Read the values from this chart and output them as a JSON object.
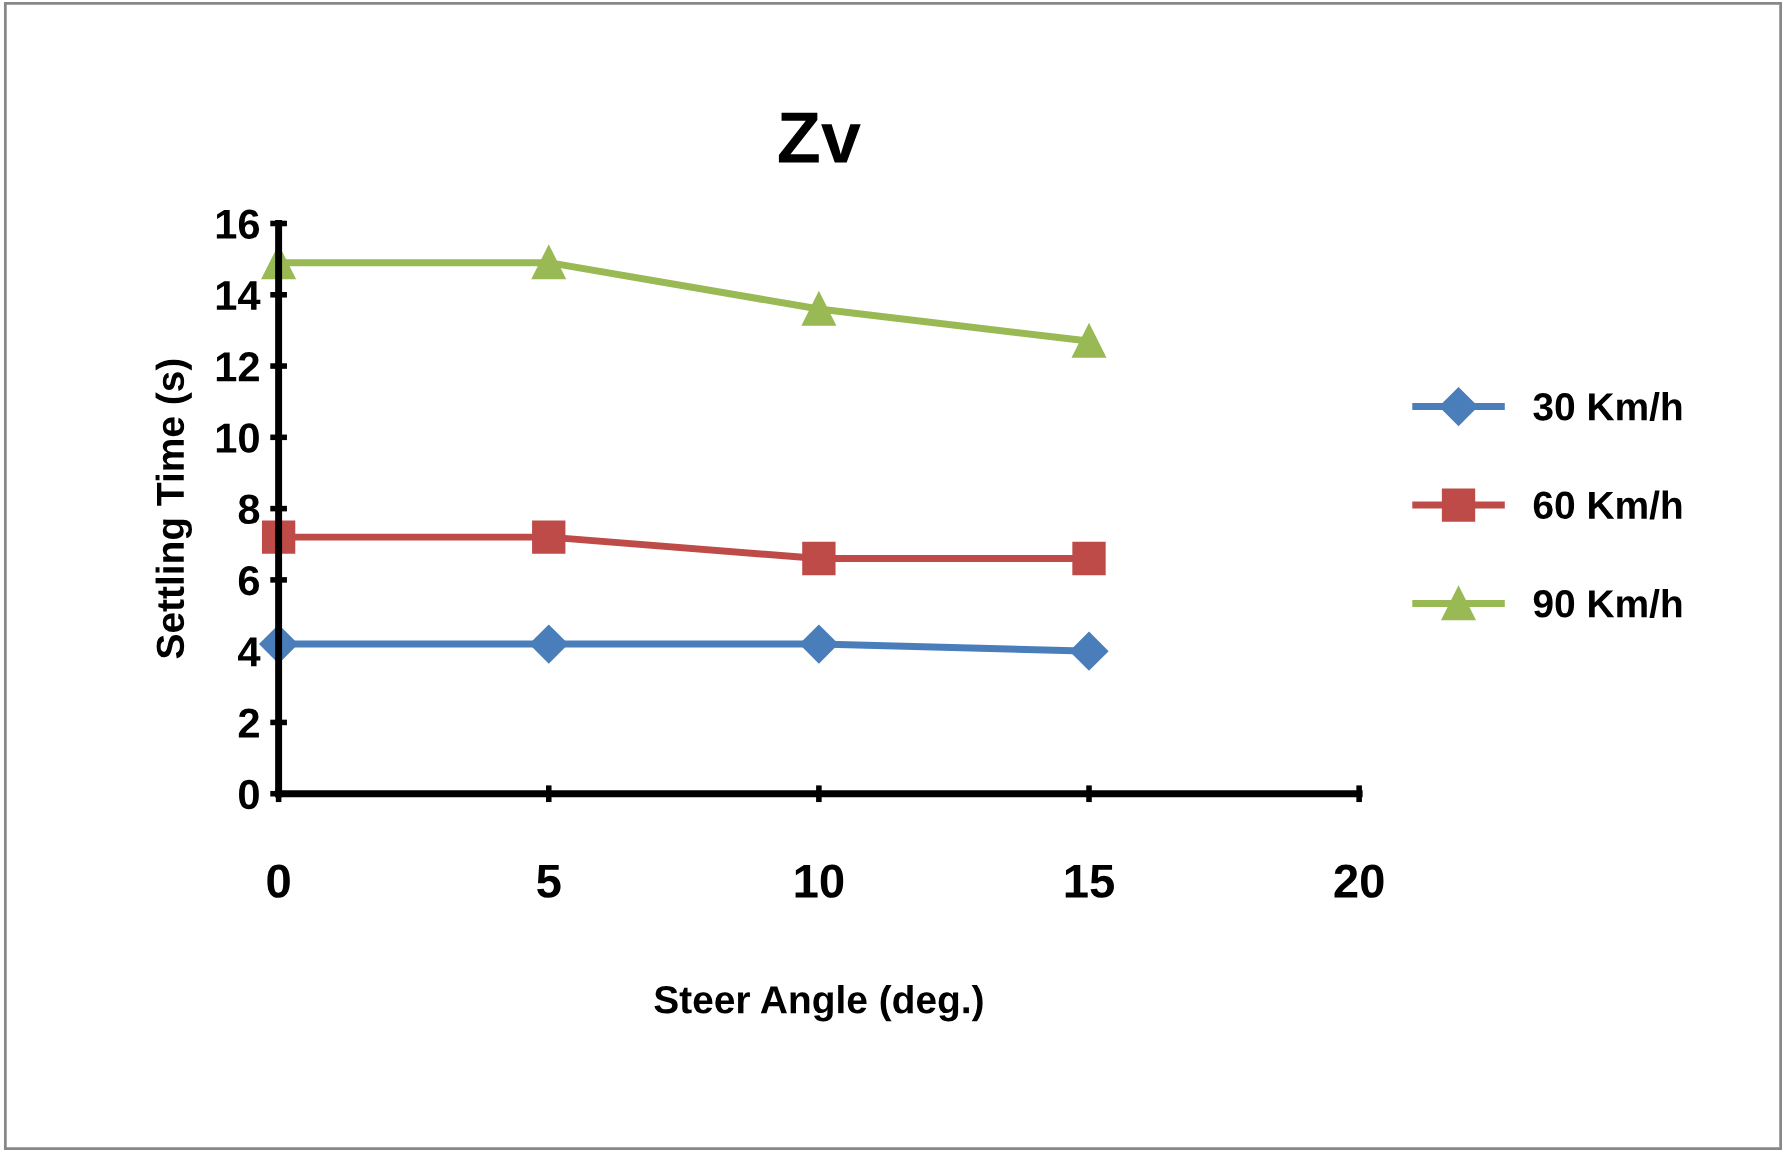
{
  "chart_data": {
    "type": "line",
    "title": "Zv",
    "xlabel": "Steer Angle (deg.)",
    "ylabel": "Settling Time (s)",
    "x": [
      0,
      5,
      10,
      15
    ],
    "series": [
      {
        "name": "30 Km/h",
        "color": "#4a7ebb",
        "marker": "diamond",
        "values": [
          4.2,
          4.2,
          4.2,
          4.0
        ]
      },
      {
        "name": "60 Km/h",
        "color": "#be4b48",
        "marker": "square",
        "values": [
          7.2,
          7.2,
          6.6,
          6.6
        ]
      },
      {
        "name": "90 Km/h",
        "color": "#98b954",
        "marker": "triangle",
        "values": [
          14.9,
          14.9,
          13.6,
          12.7
        ]
      }
    ],
    "xlim": [
      0,
      20
    ],
    "xticks": [
      0,
      5,
      10,
      15,
      20
    ],
    "ylim": [
      0,
      16
    ],
    "yticks": [
      0,
      2,
      4,
      6,
      8,
      10,
      12,
      14,
      16
    ],
    "grid": false,
    "legend": "right",
    "line_style": "solid"
  }
}
